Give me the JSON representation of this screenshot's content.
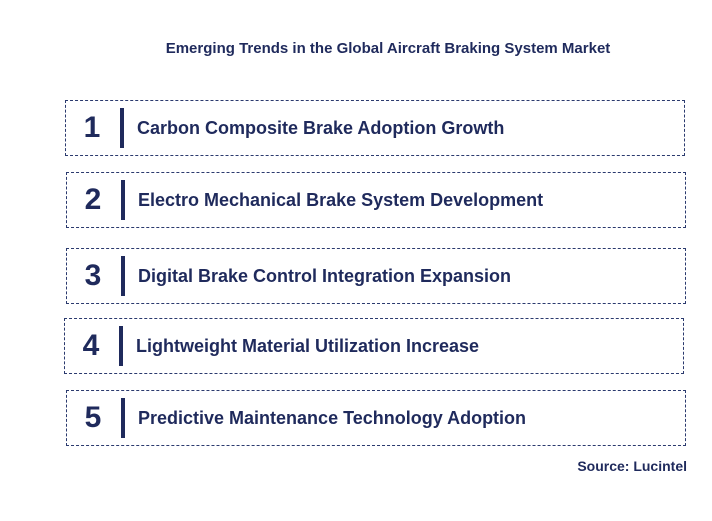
{
  "title": "Emerging Trends in the Global Aircraft Braking System Market",
  "trends": [
    {
      "number": "1",
      "label": "Carbon Composite Brake Adoption Growth"
    },
    {
      "number": "2",
      "label": "Electro Mechanical Brake System Development"
    },
    {
      "number": "3",
      "label": "Digital Brake Control Integration Expansion"
    },
    {
      "number": "4",
      "label": "Lightweight Material Utilization Increase"
    },
    {
      "number": "5",
      "label": "Predictive Maintenance Technology Adoption"
    }
  ],
  "source": "Source: Lucintel",
  "colors": {
    "text": "#1f2a5c",
    "border": "#2b3a6e",
    "background": "#ffffff"
  }
}
